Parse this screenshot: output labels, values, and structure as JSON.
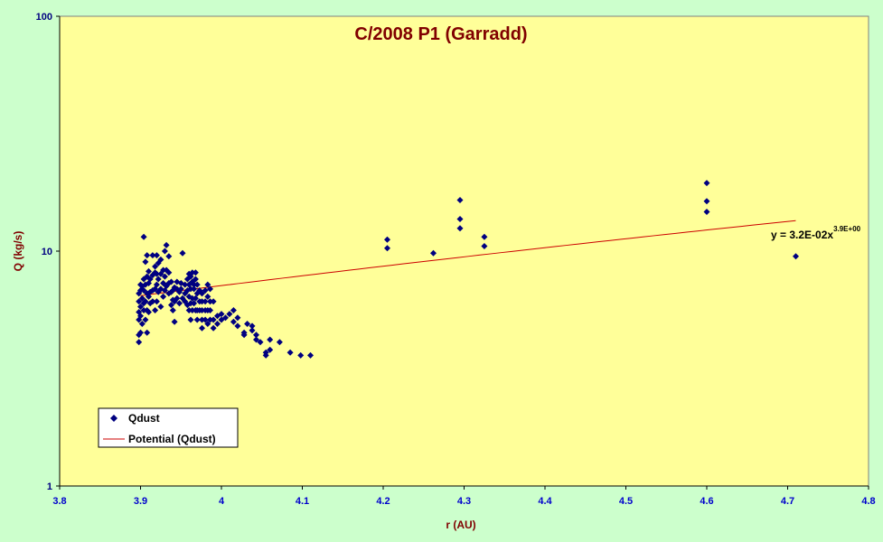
{
  "chart_data": {
    "type": "scatter",
    "title": "C/2008 P1 (Garradd)",
    "xlabel": "r (AU)",
    "ylabel": "Q (kg/s)",
    "xlim": [
      3.8,
      4.8
    ],
    "ylim": [
      1,
      100
    ],
    "yscale": "log",
    "x_ticks": [
      "3.8",
      "3.9",
      "4",
      "4.1",
      "4.2",
      "4.3",
      "4.4",
      "4.5",
      "4.6",
      "4.7",
      "4.8"
    ],
    "y_ticks": [
      "1",
      "10",
      "100"
    ],
    "grid": false,
    "background": "#ffff99",
    "legend": {
      "position": "bottom-left",
      "entries": [
        "Qdust",
        "Potential (Qdust)"
      ]
    },
    "trendline": {
      "name": "Potential (Qdust)",
      "type": "power",
      "coefficient": 0.032,
      "exponent": 3.9,
      "x_range": [
        3.9,
        4.71
      ],
      "color": "#cc0000"
    },
    "equation": {
      "text": "y = 3.2E-02x",
      "superscript": "3.9E+00"
    },
    "series": [
      {
        "name": "Qdust",
        "marker": "diamond",
        "color": "#000080",
        "points": [
          [
            3.898,
            4.1
          ],
          [
            3.898,
            4.4
          ],
          [
            3.898,
            5.1
          ],
          [
            3.898,
            5.5
          ],
          [
            3.898,
            6.1
          ],
          [
            3.898,
            6.6
          ],
          [
            3.9,
            4.5
          ],
          [
            3.9,
            5.3
          ],
          [
            3.9,
            5.8
          ],
          [
            3.9,
            6.8
          ],
          [
            3.9,
            7.2
          ],
          [
            3.902,
            4.9
          ],
          [
            3.902,
            6.3
          ],
          [
            3.902,
            7.1
          ],
          [
            3.904,
            5.6
          ],
          [
            3.904,
            6.0
          ],
          [
            3.904,
            6.8
          ],
          [
            3.904,
            7.6
          ],
          [
            3.904,
            11.5
          ],
          [
            3.906,
            5.1
          ],
          [
            3.906,
            6.1
          ],
          [
            3.906,
            7.2
          ],
          [
            3.906,
            9.0
          ],
          [
            3.908,
            4.5
          ],
          [
            3.908,
            5.6
          ],
          [
            3.908,
            6.6
          ],
          [
            3.908,
            7.8
          ],
          [
            3.908,
            9.6
          ],
          [
            3.91,
            5.5
          ],
          [
            3.91,
            6.4
          ],
          [
            3.91,
            7.3
          ],
          [
            3.91,
            8.2
          ],
          [
            3.912,
            6.0
          ],
          [
            3.912,
            6.7
          ],
          [
            3.912,
            7.6
          ],
          [
            3.915,
            6.1
          ],
          [
            3.915,
            6.8
          ],
          [
            3.915,
            7.9
          ],
          [
            3.915,
            9.6
          ],
          [
            3.918,
            5.6
          ],
          [
            3.918,
            6.9
          ],
          [
            3.918,
            8.1
          ],
          [
            3.918,
            8.6
          ],
          [
            3.92,
            6.1
          ],
          [
            3.92,
            7.2
          ],
          [
            3.92,
            8.0
          ],
          [
            3.92,
            9.6
          ],
          [
            3.922,
            6.7
          ],
          [
            3.922,
            7.6
          ],
          [
            3.922,
            8.9
          ],
          [
            3.925,
            5.8
          ],
          [
            3.925,
            6.9
          ],
          [
            3.925,
            8.0
          ],
          [
            3.925,
            9.2
          ],
          [
            3.928,
            6.4
          ],
          [
            3.928,
            7.3
          ],
          [
            3.928,
            8.3
          ],
          [
            3.93,
            6.8
          ],
          [
            3.93,
            7.8
          ],
          [
            3.93,
            10.0
          ],
          [
            3.932,
            7.1
          ],
          [
            3.932,
            8.3
          ],
          [
            3.932,
            10.6
          ],
          [
            3.935,
            6.6
          ],
          [
            3.935,
            7.3
          ],
          [
            3.935,
            8.1
          ],
          [
            3.935,
            9.5
          ],
          [
            3.938,
            5.9
          ],
          [
            3.938,
            6.7
          ],
          [
            3.938,
            7.4
          ],
          [
            3.94,
            5.6
          ],
          [
            3.94,
            6.2
          ],
          [
            3.94,
            6.8
          ],
          [
            3.942,
            5.0
          ],
          [
            3.942,
            6.1
          ],
          [
            3.942,
            7.0
          ],
          [
            3.945,
            6.3
          ],
          [
            3.945,
            6.9
          ],
          [
            3.945,
            7.4
          ],
          [
            3.948,
            6.0
          ],
          [
            3.948,
            6.7
          ],
          [
            3.95,
            6.9
          ],
          [
            3.95,
            7.3
          ],
          [
            3.952,
            6.3
          ],
          [
            3.952,
            9.8
          ],
          [
            3.955,
            6.1
          ],
          [
            3.955,
            6.6
          ],
          [
            3.955,
            7.2
          ],
          [
            3.958,
            5.9
          ],
          [
            3.958,
            6.8
          ],
          [
            3.958,
            7.6
          ],
          [
            3.96,
            5.6
          ],
          [
            3.96,
            6.4
          ],
          [
            3.96,
            7.2
          ],
          [
            3.96,
            8.0
          ],
          [
            3.962,
            5.1
          ],
          [
            3.962,
            6.0
          ],
          [
            3.962,
            6.9
          ],
          [
            3.962,
            7.8
          ],
          [
            3.964,
            5.6
          ],
          [
            3.964,
            6.3
          ],
          [
            3.964,
            7.4
          ],
          [
            3.964,
            8.1
          ],
          [
            3.966,
            6.0
          ],
          [
            3.966,
            6.9
          ],
          [
            3.966,
            7.2
          ],
          [
            3.968,
            5.6
          ],
          [
            3.968,
            6.3
          ],
          [
            3.968,
            7.6
          ],
          [
            3.968,
            8.1
          ],
          [
            3.97,
            5.1
          ],
          [
            3.97,
            5.6
          ],
          [
            3.97,
            6.6
          ],
          [
            3.97,
            7.2
          ],
          [
            3.973,
            5.6
          ],
          [
            3.973,
            6.1
          ],
          [
            3.973,
            6.8
          ],
          [
            3.976,
            4.7
          ],
          [
            3.976,
            5.1
          ],
          [
            3.976,
            5.6
          ],
          [
            3.976,
            6.1
          ],
          [
            3.976,
            6.6
          ],
          [
            3.98,
            5.1
          ],
          [
            3.98,
            5.6
          ],
          [
            3.98,
            6.1
          ],
          [
            3.98,
            6.8
          ],
          [
            3.983,
            4.9
          ],
          [
            3.983,
            5.6
          ],
          [
            3.983,
            6.4
          ],
          [
            3.983,
            7.2
          ],
          [
            3.986,
            5.1
          ],
          [
            3.986,
            5.6
          ],
          [
            3.986,
            6.1
          ],
          [
            3.986,
            6.9
          ],
          [
            3.99,
            4.7
          ],
          [
            3.99,
            5.1
          ],
          [
            3.99,
            6.1
          ],
          [
            3.995,
            4.9
          ],
          [
            3.995,
            5.3
          ],
          [
            4.0,
            5.1
          ],
          [
            4.0,
            5.4
          ],
          [
            4.005,
            5.2
          ],
          [
            4.01,
            5.4
          ],
          [
            4.015,
            5.0
          ],
          [
            4.015,
            5.6
          ],
          [
            4.02,
            4.8
          ],
          [
            4.02,
            5.2
          ],
          [
            4.028,
            4.4
          ],
          [
            4.028,
            4.5
          ],
          [
            4.032,
            4.9
          ],
          [
            4.038,
            4.6
          ],
          [
            4.038,
            4.8
          ],
          [
            4.043,
            4.2
          ],
          [
            4.043,
            4.4
          ],
          [
            4.048,
            4.1
          ],
          [
            4.055,
            3.6
          ],
          [
            4.055,
            3.7
          ],
          [
            4.06,
            3.8
          ],
          [
            4.06,
            4.2
          ],
          [
            4.072,
            4.1
          ],
          [
            4.085,
            3.7
          ],
          [
            4.098,
            3.6
          ],
          [
            4.11,
            3.6
          ],
          [
            4.205,
            10.3
          ],
          [
            4.205,
            11.2
          ],
          [
            4.262,
            9.8
          ],
          [
            4.295,
            12.5
          ],
          [
            4.295,
            13.7
          ],
          [
            4.295,
            16.5
          ],
          [
            4.325,
            10.5
          ],
          [
            4.325,
            11.5
          ],
          [
            4.6,
            14.7
          ],
          [
            4.6,
            16.3
          ],
          [
            4.6,
            19.5
          ],
          [
            4.71,
            9.5
          ]
        ]
      }
    ]
  }
}
